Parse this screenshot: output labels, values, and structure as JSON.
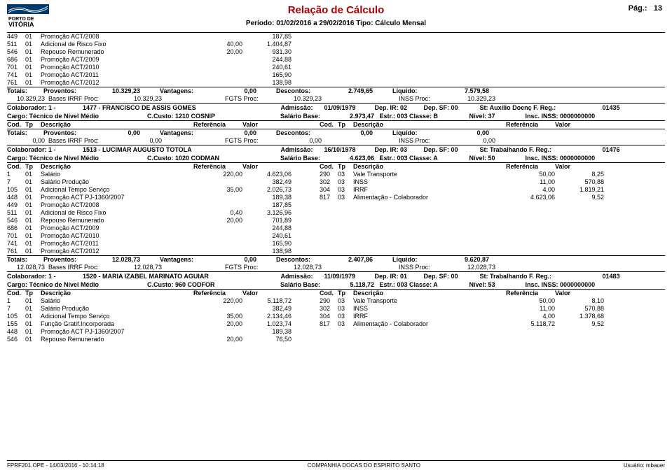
{
  "header": {
    "title": "Relação de Cálculo",
    "period": "Período: 01/02/2016 a 29/02/2016    Tipo: Cálculo Mensal",
    "pagelabel": "Pág.:",
    "pagenum": "13",
    "logo_top": "PORTO DE",
    "logo_bottom": "VITÓRIA",
    "logo_sub": "COMPANHIA DOCAS DO ESPÍRITO SANTO"
  },
  "top_items": [
    {
      "cod": "449",
      "tp": "01",
      "desc": "Promoção ACT/2008",
      "ref": "",
      "val": "187,85"
    },
    {
      "cod": "511",
      "tp": "01",
      "desc": "Adicional de Risco Fixo",
      "ref": "40,00",
      "val": "1.404,87"
    },
    {
      "cod": "546",
      "tp": "01",
      "desc": "Repouso Remunerado",
      "ref": "20,00",
      "val": "931,30"
    },
    {
      "cod": "686",
      "tp": "01",
      "desc": "Promoção ACT/2009",
      "ref": "",
      "val": "244,88"
    },
    {
      "cod": "701",
      "tp": "01",
      "desc": "Promoção ACT/2010",
      "ref": "",
      "val": "240,61"
    },
    {
      "cod": "741",
      "tp": "01",
      "desc": "Promoção ACT/2011",
      "ref": "",
      "val": "165,90"
    },
    {
      "cod": "761",
      "tp": "01",
      "desc": "Promoção ACT/2012",
      "ref": "",
      "val": "138,98"
    }
  ],
  "top_totais": {
    "proventos": "10.329,23",
    "vantagens": "0,00",
    "descontos": "2.749,65",
    "liquido": "7.579,58",
    "base": "10.329,23",
    "base_irrf": "10.329,23",
    "fgts": "10.329,23",
    "inss": "10.329,23"
  },
  "colab1": {
    "colab": "Colaborador: 1 -",
    "seq": "1477",
    "nome": "- FRANCISCO DE ASSIS GOMES",
    "adm_l": "Admissão:",
    "adm": "01/09/1979",
    "dep_ir": "Dep. IR: 02",
    "dep_sf": "Dep. SF: 00",
    "st": "St: Auxílio Doenç  F. Reg.:",
    "freg": "01435",
    "cargo": "Cargo: Técnico de Nível Médio",
    "ccusto": "C.Custo: 1210  COSNIP",
    "sal_l": "Salário Base:",
    "sal": "2.973,47",
    "estr": "Estr.: 003  Classe: B",
    "nivel": "Nível: 37",
    "inss": "Insc. INSS:  0000000000",
    "totais": {
      "proventos": "0,00",
      "vantagens": "0,00",
      "descontos": "0,00",
      "liquido": "0,00",
      "base": "0,00",
      "base_irrf": "0,00",
      "fgts": "0,00",
      "inss": "0,00"
    }
  },
  "colab2": {
    "colab": "Colaborador: 1 -",
    "seq": "1513",
    "nome": "- LUCIMAR AUGUSTO TOTOLA",
    "adm_l": "Admissão:",
    "adm": "16/10/1978",
    "dep_ir": "Dep. IR: 03",
    "dep_sf": "Dep. SF: 00",
    "st": "St: Trabalhando   F. Reg.:",
    "freg": "01476",
    "cargo": "Cargo: Técnico de Nível Médio",
    "ccusto": "C.Custo: 1020  CODMAN",
    "sal_l": "Salário Base:",
    "sal": "4.623,06",
    "estr": "Estr.: 003  Classe: A",
    "nivel": "Nível: 50",
    "inss": "Insc. INSS:  0000000000",
    "left": [
      {
        "cod": "1",
        "tp": "01",
        "desc": "Salário",
        "ref": "220,00",
        "val": "4.623,06"
      },
      {
        "cod": "7",
        "tp": "01",
        "desc": "Salário Produção",
        "ref": "",
        "val": "382,49"
      },
      {
        "cod": "105",
        "tp": "01",
        "desc": "Adicional Tempo Serviço",
        "ref": "35,00",
        "val": "2.026,73"
      },
      {
        "cod": "448",
        "tp": "01",
        "desc": "Promoção ACT PJ-1360/2007",
        "ref": "",
        "val": "189,38"
      },
      {
        "cod": "449",
        "tp": "01",
        "desc": "Promoção ACT/2008",
        "ref": "",
        "val": "187,85"
      },
      {
        "cod": "511",
        "tp": "01",
        "desc": "Adicional de Risco Fixo",
        "ref": "0,40",
        "val": "3.126,96"
      },
      {
        "cod": "546",
        "tp": "01",
        "desc": "Repouso Remunerado",
        "ref": "20,00",
        "val": "701,89"
      },
      {
        "cod": "686",
        "tp": "01",
        "desc": "Promoção ACT/2009",
        "ref": "",
        "val": "244,88"
      },
      {
        "cod": "701",
        "tp": "01",
        "desc": "Promoção ACT/2010",
        "ref": "",
        "val": "240,61"
      },
      {
        "cod": "741",
        "tp": "01",
        "desc": "Promoção ACT/2011",
        "ref": "",
        "val": "165,90"
      },
      {
        "cod": "761",
        "tp": "01",
        "desc": "Promoção ACT/2012",
        "ref": "",
        "val": "138,98"
      }
    ],
    "right": [
      {
        "cod": "290",
        "tp": "03",
        "desc": "Vale Transporte",
        "ref": "50,00",
        "val": "8,25"
      },
      {
        "cod": "302",
        "tp": "03",
        "desc": "INSS",
        "ref": "11,00",
        "val": "570,88"
      },
      {
        "cod": "304",
        "tp": "03",
        "desc": "IRRF",
        "ref": "4,00",
        "val": "1.819,21"
      },
      {
        "cod": "817",
        "tp": "03",
        "desc": "Alimentação - Colaborador",
        "ref": "4.623,06",
        "val": "9,52"
      }
    ],
    "totais": {
      "proventos": "12.028,73",
      "vantagens": "0,00",
      "descontos": "2.407,86",
      "liquido": "9.620,87",
      "base": "12.028,73",
      "base_irrf": "12.028,73",
      "fgts": "12.028,73",
      "inss": "12.028,73"
    }
  },
  "colab3": {
    "colab": "Colaborador: 1 -",
    "seq": "1520",
    "nome": "- MARIA IZABEL MARINATO AGUIAR",
    "adm_l": "Admissão:",
    "adm": "11/09/1979",
    "dep_ir": "Dep. IR: 01",
    "dep_sf": "Dep. SF: 00",
    "st": "St: Trabalhando   F. Reg.:",
    "freg": "01483",
    "cargo": "Cargo: Técnico de Nível Médio",
    "ccusto": "C.Custo: 960  CODFOR",
    "sal_l": "Salário Base:",
    "sal": "5.118,72",
    "estr": "Estr.: 003  Classe: A",
    "nivel": "Nível: 53",
    "inss": "Insc. INSS:  0000000000",
    "left": [
      {
        "cod": "1",
        "tp": "01",
        "desc": "Salário",
        "ref": "220,00",
        "val": "5.118,72"
      },
      {
        "cod": "7",
        "tp": "01",
        "desc": "Salário Produção",
        "ref": "",
        "val": "382,49"
      },
      {
        "cod": "105",
        "tp": "01",
        "desc": "Adicional Tempo Serviço",
        "ref": "35,00",
        "val": "2.134,46"
      },
      {
        "cod": "155",
        "tp": "01",
        "desc": "Função Gratif.Incorporada",
        "ref": "20,00",
        "val": "1.023,74"
      },
      {
        "cod": "448",
        "tp": "01",
        "desc": "Promoção ACT PJ-1360/2007",
        "ref": "",
        "val": "189,38"
      },
      {
        "cod": "546",
        "tp": "01",
        "desc": "Repouso Remunerado",
        "ref": "20,00",
        "val": "76,50"
      }
    ],
    "right": [
      {
        "cod": "290",
        "tp": "03",
        "desc": "Vale Transporte",
        "ref": "50,00",
        "val": "8,10"
      },
      {
        "cod": "302",
        "tp": "03",
        "desc": "INSS",
        "ref": "11,00",
        "val": "570,88"
      },
      {
        "cod": "304",
        "tp": "03",
        "desc": "IRRF",
        "ref": "4,00",
        "val": "1.378,68"
      },
      {
        "cod": "817",
        "tp": "03",
        "desc": "Alimentação - Colaborador",
        "ref": "5.118,72",
        "val": "9,52"
      }
    ]
  },
  "headers": {
    "cod": "Cod.",
    "tp": "Tp",
    "desc": "Descrição",
    "ref": "Referência",
    "val": "Valor",
    "totais": "Totais:",
    "prov": "Proventos:",
    "vant": "Vantagens:",
    "desc2": "Descontos:",
    "liq": "Líquido:",
    "birrf": "Bases IRRF Proc:",
    "fgts": "FGTS Proc:",
    "inssp": "INSS Proc:"
  },
  "footer": {
    "left": "FPRF201.OPE  -  14/03/2016  -  10:14:18",
    "center": "COMPANHIA DOCAS DO ESPIRITO SANTO",
    "right": "Usuário: mbauer"
  }
}
